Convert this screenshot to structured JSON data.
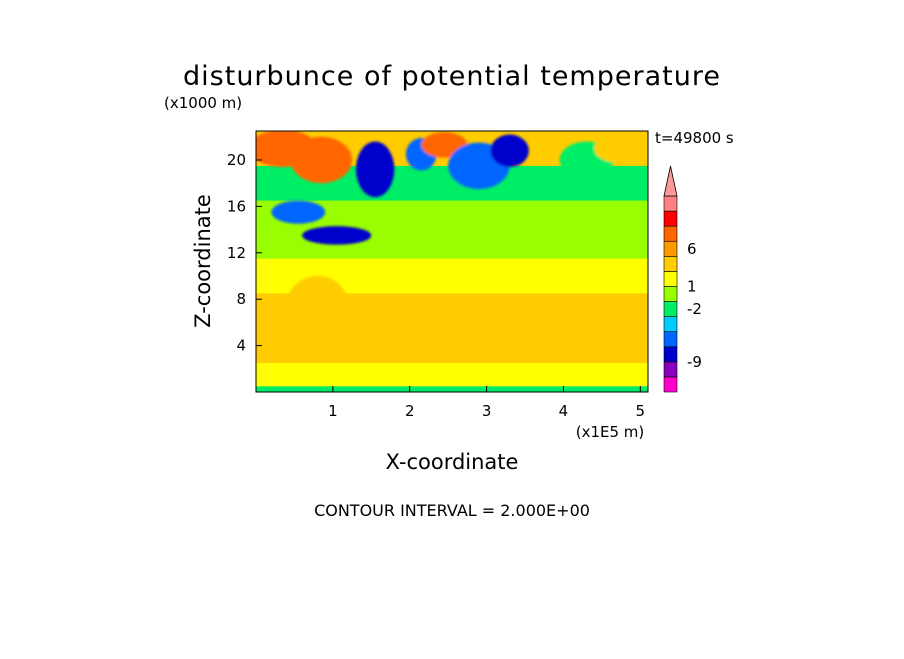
{
  "chart_data": {
    "type": "heatmap",
    "title": "disturbunce of potential temperature",
    "z_unit": "(x1000 m)",
    "x_unit": "(x1E5 m)",
    "xlabel": "X-coordinate",
    "ylabel": "Z-coordinate",
    "time_label": "t=49800 s",
    "footer": "CONTOUR INTERVAL = 2.000E+00",
    "x_range": [
      0,
      5.1
    ],
    "y_range": [
      0,
      22.5
    ],
    "x_ticks": [
      {
        "v": 1,
        "label": "1"
      },
      {
        "v": 2,
        "label": "2"
      },
      {
        "v": 3,
        "label": "3"
      },
      {
        "v": 4,
        "label": "4"
      },
      {
        "v": 5,
        "label": "5"
      }
    ],
    "y_ticks": [
      {
        "v": 4,
        "label": "4"
      },
      {
        "v": 8,
        "label": "8"
      },
      {
        "v": 12,
        "label": "12"
      },
      {
        "v": 16,
        "label": "16"
      },
      {
        "v": 20,
        "label": "20"
      }
    ],
    "colorbar": {
      "colors": [
        "#ff00cc",
        "#8800bb",
        "#0000cc",
        "#0066ff",
        "#00ccff",
        "#00ee66",
        "#99ff00",
        "#ffff00",
        "#ffcc00",
        "#ff9900",
        "#ff6600",
        "#ff0000",
        "#ff8080",
        "#ff9999"
      ],
      "labels": [
        "6",
        "1",
        "-2",
        "-9"
      ],
      "label_levels": [
        6,
        1,
        -2,
        -9
      ],
      "level_min": -13,
      "level_max": 15
    },
    "field_bands": [
      {
        "z_from": 0.0,
        "z_to": 0.5,
        "value": -2,
        "description": "ground layer"
      },
      {
        "z_from": 0.5,
        "z_to": 2.5,
        "value": 2
      },
      {
        "z_from": 2.5,
        "z_to": 8.5,
        "value": 3
      },
      {
        "z_from": 8.5,
        "z_to": 11.5,
        "value": 2
      },
      {
        "z_from": 11.5,
        "z_to": 13.5,
        "value": 0
      },
      {
        "z_from": 13.5,
        "z_to": 16.5,
        "value": -1
      },
      {
        "z_from": 16.5,
        "z_to": 19.5,
        "value": -3
      },
      {
        "z_from": 19.5,
        "z_to": 22.5,
        "value": 4
      }
    ],
    "features": [
      {
        "x": 0.35,
        "z": 21.0,
        "rx": 0.45,
        "rz": 1.6,
        "value": 8
      },
      {
        "x": 0.85,
        "z": 20.0,
        "rx": 0.4,
        "rz": 2.0,
        "value": 7
      },
      {
        "x": 1.55,
        "z": 19.2,
        "rx": 0.25,
        "rz": 2.4,
        "value": -9
      },
      {
        "x": 2.15,
        "z": 20.5,
        "rx": 0.2,
        "rz": 1.4,
        "value": -7
      },
      {
        "x": 2.45,
        "z": 21.3,
        "rx": 0.3,
        "rz": 1.1,
        "value": 8
      },
      {
        "x": 2.9,
        "z": 19.5,
        "rx": 0.4,
        "rz": 2.0,
        "value": -7
      },
      {
        "x": 3.3,
        "z": 20.8,
        "rx": 0.25,
        "rz": 1.4,
        "value": -9
      },
      {
        "x": 1.05,
        "z": 13.5,
        "rx": 0.45,
        "rz": 0.8,
        "value": -9
      },
      {
        "x": 0.55,
        "z": 15.5,
        "rx": 0.35,
        "rz": 1.0,
        "value": -7
      },
      {
        "x": 4.3,
        "z": 20.0,
        "rx": 0.35,
        "rz": 1.6,
        "value": -3
      },
      {
        "x": 4.7,
        "z": 21.0,
        "rx": 0.3,
        "rz": 1.2,
        "value": 3
      },
      {
        "x": 4.5,
        "z": 5.5,
        "rx": 0.45,
        "rz": 1.3,
        "value": 4
      },
      {
        "x": 3.2,
        "z": 5.5,
        "rx": 0.5,
        "rz": 1.5,
        "value": 4
      },
      {
        "x": 0.8,
        "z": 7.5,
        "rx": 0.4,
        "rz": 2.5,
        "value": 4
      }
    ]
  }
}
